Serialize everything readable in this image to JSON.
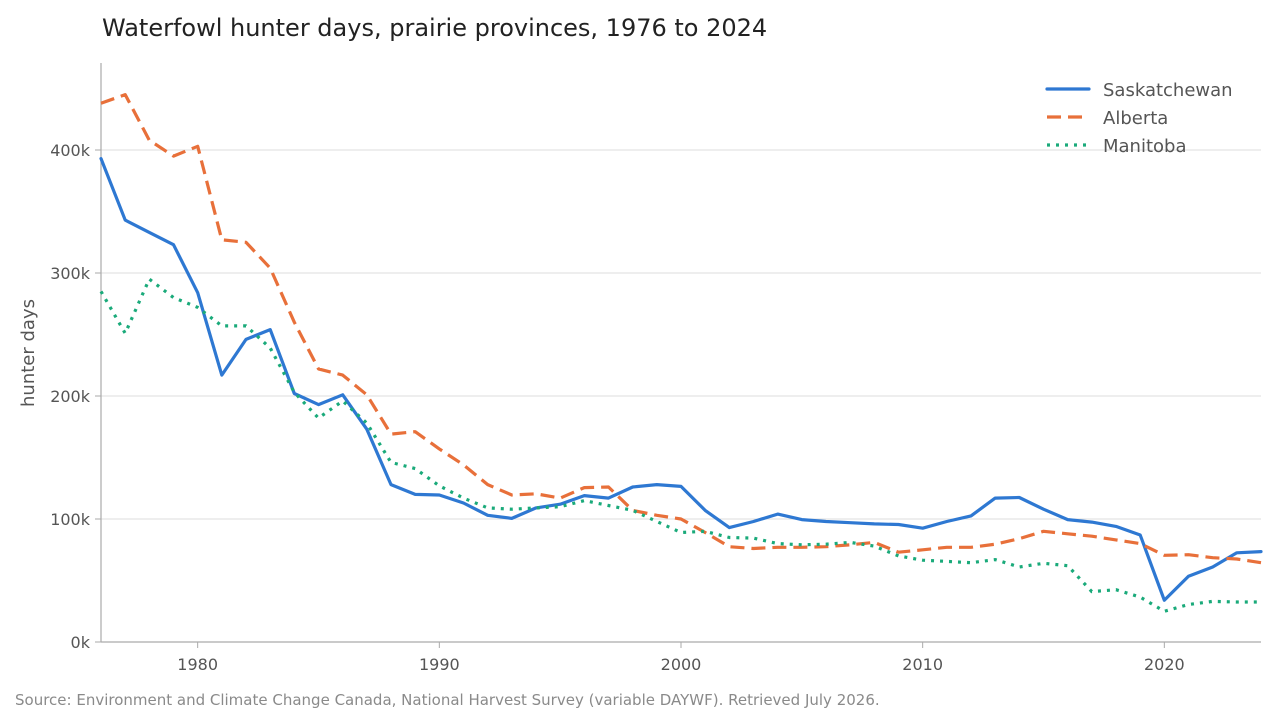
{
  "source_note": "Source: Environment and Climate Change Canada, National Harvest Survey (variable DAYWF). Retrieved July 2026.",
  "chart_data": {
    "type": "line",
    "title": "Waterfowl hunter days, prairie provinces, 1976 to 2024",
    "xlabel": "",
    "ylabel": "hunter days",
    "xlim": [
      1976,
      2024
    ],
    "ylim": [
      0,
      470000
    ],
    "xticks": [
      1980,
      1990,
      2000,
      2010,
      2020
    ],
    "xtick_labels": [
      "1980",
      "1990",
      "2000",
      "2010",
      "2020"
    ],
    "yticks": [
      0,
      100000,
      200000,
      300000,
      400000
    ],
    "ytick_labels": [
      "0k",
      "100k",
      "200k",
      "300k",
      "400k"
    ],
    "grid": "horizontal",
    "legend_position": "top-right",
    "x": [
      1976,
      1977,
      1978,
      1979,
      1980,
      1981,
      1982,
      1983,
      1984,
      1985,
      1986,
      1987,
      1988,
      1989,
      1990,
      1991,
      1992,
      1993,
      1994,
      1995,
      1996,
      1997,
      1998,
      1999,
      2000,
      2001,
      2002,
      2003,
      2004,
      2005,
      2006,
      2007,
      2008,
      2009,
      2010,
      2011,
      2012,
      2013,
      2014,
      2015,
      2016,
      2017,
      2018,
      2019,
      2020,
      2021,
      2022,
      2023,
      2024
    ],
    "series": [
      {
        "name": "Saskatchewan",
        "color": "#2e78d2",
        "dash": "solid",
        "values": [
          393000,
          343000,
          333000,
          323000,
          284000,
          217000,
          246000,
          254000,
          202000,
          193000,
          201000,
          173000,
          128000,
          120000,
          119500,
          113000,
          103000,
          100500,
          109000,
          112000,
          119000,
          117000,
          126000,
          128000,
          126500,
          107000,
          93000,
          98000,
          104000,
          99500,
          98000,
          97000,
          96000,
          95500,
          92500,
          98000,
          102500,
          117000,
          117500,
          108000,
          99500,
          97500,
          94000,
          87000,
          34000,
          53500,
          61000,
          72500,
          73500
        ]
      },
      {
        "name": "Alberta",
        "color": "#e8703a",
        "dash": "dashed",
        "values": [
          438000,
          445000,
          408000,
          395000,
          403000,
          327000,
          325000,
          304000,
          260000,
          222000,
          217000,
          201000,
          169000,
          171000,
          157000,
          144000,
          128000,
          119500,
          120500,
          117000,
          125500,
          126000,
          107000,
          103000,
          100000,
          89000,
          77500,
          76000,
          77000,
          77000,
          77500,
          79000,
          81000,
          73000,
          75000,
          77000,
          77000,
          79500,
          84000,
          90000,
          88000,
          86000,
          83000,
          80000,
          70500,
          71000,
          68500,
          67500,
          64500
        ]
      },
      {
        "name": "Manitoba",
        "color": "#1aaa7a",
        "dash": "dotted",
        "values": [
          285000,
          251000,
          295000,
          280000,
          272000,
          257000,
          257000,
          239000,
          203000,
          182000,
          196000,
          178000,
          146000,
          141000,
          127000,
          117000,
          109000,
          108000,
          109000,
          110000,
          115000,
          111000,
          107000,
          98000,
          89000,
          90000,
          85000,
          84500,
          80000,
          79000,
          79500,
          81000,
          78000,
          70000,
          66500,
          65500,
          64500,
          67000,
          61000,
          64000,
          62000,
          41000,
          42500,
          36500,
          25000,
          30500,
          33000,
          32500,
          32500
        ]
      }
    ]
  }
}
